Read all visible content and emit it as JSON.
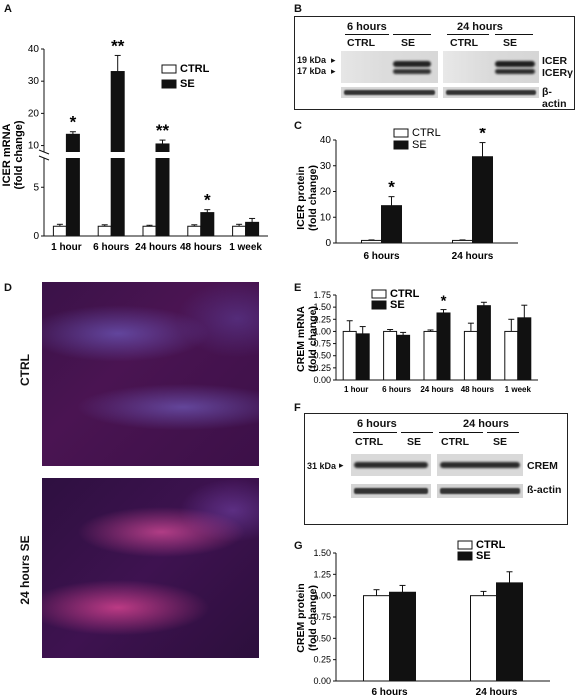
{
  "panels": {
    "A": {
      "letter": "A",
      "ylabel_line1": "ICER mRNA",
      "ylabel_line2": "(fold change)",
      "legend": [
        "CTRL",
        "SE"
      ],
      "categories": [
        "1 hour",
        "6 hours",
        "24 hours",
        "48 hours",
        "1 week"
      ],
      "ticks_upper": [
        "40",
        "30",
        "20",
        "10"
      ],
      "ticks_lower": [
        "5",
        "0"
      ],
      "significance": [
        "*",
        "**",
        "**",
        "*",
        ""
      ]
    },
    "B": {
      "letter": "B",
      "groups": [
        "6 hours",
        "24 hours"
      ],
      "lanes": [
        "CTRL",
        "SE",
        "CTRL",
        "SE"
      ],
      "markers": [
        "19 kDa",
        "17 kDa"
      ],
      "bands": [
        "ICER",
        "ICERγ",
        "β-actin"
      ]
    },
    "C": {
      "letter": "C",
      "ylabel_line1": "ICER protein",
      "ylabel_line2": "(fold change)",
      "legend": [
        "CTRL",
        "SE"
      ],
      "categories": [
        "6 hours",
        "24 hours"
      ],
      "ticks": [
        "40",
        "30",
        "20",
        "10",
        "0"
      ],
      "significance": [
        "*",
        "*"
      ]
    },
    "D": {
      "letter": "D",
      "labels": [
        "CTRL",
        "24 hours SE"
      ]
    },
    "E": {
      "letter": "E",
      "ylabel_line1": "CREM mRNA",
      "ylabel_line2": "(fold change)",
      "legend": [
        "CTRL",
        "SE"
      ],
      "categories": [
        "1 hour",
        "6 hours",
        "24 hours",
        "48 hours",
        "1 week"
      ],
      "ticks": [
        "1.75",
        "1.50",
        "1.25",
        "1.00",
        "0.75",
        "0.50",
        "0.25",
        "0.00"
      ],
      "significance": [
        "",
        "",
        "*",
        "",
        ""
      ]
    },
    "F": {
      "letter": "F",
      "groups": [
        "6 hours",
        "24 hours"
      ],
      "lanes": [
        "CTRL",
        "SE",
        "CTRL",
        "SE"
      ],
      "markers": [
        "31 kDa"
      ],
      "bands": [
        "CREM",
        "ß-actin"
      ]
    },
    "G": {
      "letter": "G",
      "ylabel_line1": "CREM protein",
      "ylabel_line2": "(fold change)",
      "legend": [
        "CTRL",
        "SE"
      ],
      "categories": [
        "6 hours",
        "24 hours"
      ],
      "ticks": [
        "1.50",
        "1.25",
        "1.00",
        "0.75",
        "0.50",
        "0.25",
        "0.00"
      ]
    }
  },
  "chart_data": [
    {
      "panel": "A",
      "type": "bar",
      "broken_axis": true,
      "categories": [
        "1 hour",
        "6 hours",
        "24 hours",
        "48 hours",
        "1 week"
      ],
      "series": [
        {
          "name": "CTRL",
          "values": [
            1.0,
            1.0,
            1.0,
            1.0,
            1.0
          ],
          "errors": [
            0.2,
            0.15,
            0.1,
            0.15,
            0.2
          ]
        },
        {
          "name": "SE",
          "values": [
            13.5,
            33.0,
            10.5,
            2.4,
            1.4
          ],
          "errors": [
            0.8,
            5.0,
            1.2,
            0.3,
            0.4
          ]
        }
      ],
      "ylim": [
        0,
        40
      ]
    },
    {
      "panel": "C",
      "type": "bar",
      "categories": [
        "6 hours",
        "24 hours"
      ],
      "series": [
        {
          "name": "CTRL",
          "values": [
            1.0,
            1.0
          ],
          "errors": [
            0.2,
            0.2
          ]
        },
        {
          "name": "SE",
          "values": [
            14.5,
            33.5
          ],
          "errors": [
            3.5,
            5.5
          ]
        }
      ],
      "ylim": [
        0,
        40
      ]
    },
    {
      "panel": "E",
      "type": "bar",
      "categories": [
        "1 hour",
        "6 hours",
        "24 hours",
        "48 hours",
        "1 week"
      ],
      "series": [
        {
          "name": "CTRL",
          "values": [
            1.0,
            1.0,
            1.0,
            1.0,
            1.0
          ],
          "errors": [
            0.22,
            0.04,
            0.03,
            0.17,
            0.25
          ]
        },
        {
          "name": "SE",
          "values": [
            0.95,
            0.92,
            1.38,
            1.53,
            1.28
          ],
          "errors": [
            0.15,
            0.06,
            0.07,
            0.07,
            0.26
          ]
        }
      ],
      "ylim": [
        0,
        1.75
      ]
    },
    {
      "panel": "G",
      "type": "bar",
      "categories": [
        "6 hours",
        "24 hours"
      ],
      "series": [
        {
          "name": "CTRL",
          "values": [
            1.0,
            1.0
          ],
          "errors": [
            0.07,
            0.05
          ]
        },
        {
          "name": "SE",
          "values": [
            1.04,
            1.15
          ],
          "errors": [
            0.08,
            0.13
          ]
        }
      ],
      "ylim": [
        0,
        1.5
      ]
    }
  ]
}
